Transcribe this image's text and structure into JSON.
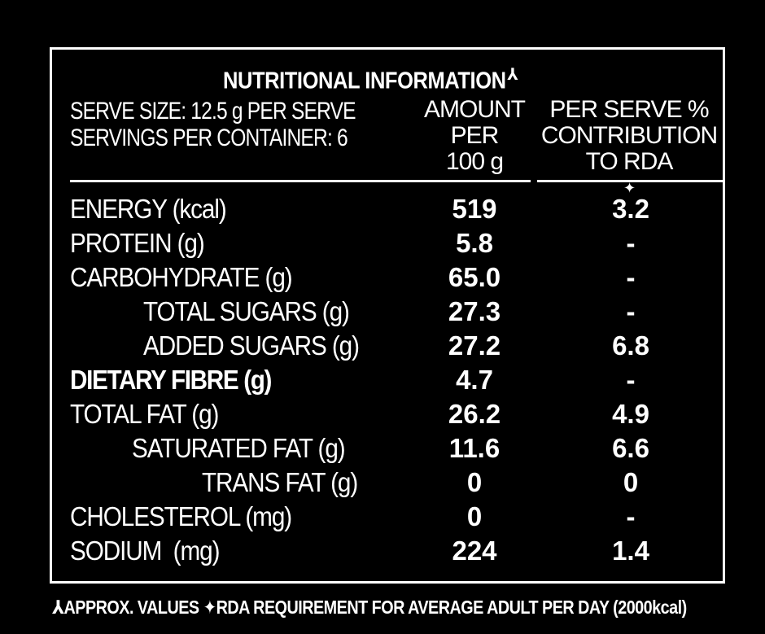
{
  "panel": {
    "title": "NUTRITIONAL INFORMATION",
    "title_mark": "⅄",
    "serve_size": "SERVE SIZE: 12.5 g PER SERVE",
    "servings": "SERVINGS PER CONTAINER: 6",
    "col_amount": [
      "AMOUNT",
      "PER",
      "100 g"
    ],
    "col_rda": [
      "PER SERVE %",
      "CONTRIBUTION",
      "TO RDA"
    ],
    "rda_mark": "✦"
  },
  "rows": [
    {
      "label": "ENERGY (kcal)",
      "amount": "519",
      "rda": "3.2"
    },
    {
      "label": "PROTEIN (g)",
      "amount": "5.8",
      "rda": "-"
    },
    {
      "label": "CARBOHYDRATE (g)",
      "amount": "65.0",
      "rda": "-"
    },
    {
      "label": "TOTAL SUGARS (g)",
      "amount": "27.3",
      "rda": "-"
    },
    {
      "label": "ADDED SUGARS (g)",
      "amount": "27.2",
      "rda": "6.8"
    },
    {
      "label": "DIETARY FIBRE (g)",
      "amount": "4.7",
      "rda": "-"
    },
    {
      "label": "TOTAL FAT (g)",
      "amount": "26.2",
      "rda": "4.9"
    },
    {
      "label": "SATURATED FAT (g)",
      "amount": "11.6",
      "rda": "6.6"
    },
    {
      "label": "TRANS FAT (g)",
      "amount": "0",
      "rda": "0"
    },
    {
      "label": "CHOLESTEROL (mg)",
      "amount": "0",
      "rda": "-"
    },
    {
      "label": "SODIUM  (mg)",
      "amount": "224",
      "rda": "1.4"
    }
  ],
  "footnote": "⅄APPROX. VALUES ✦RDA REQUIREMENT FOR AVERAGE ADULT PER DAY (2000kcal)",
  "colors": {
    "background": "#000000",
    "foreground": "#ffffff"
  }
}
